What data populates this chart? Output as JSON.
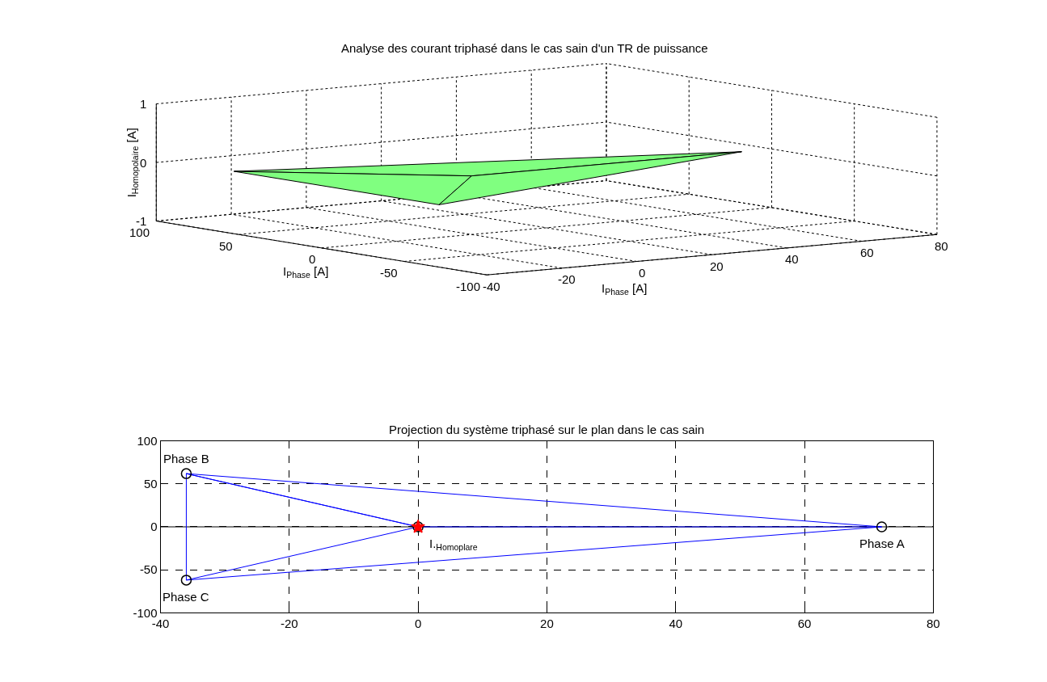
{
  "chart_data": [
    {
      "type": "other",
      "title": "Analyse des courant triphasé dans le cas sain d'un TR de puissance",
      "xlabel": "I$_{Phase}$ [A]",
      "ylabel": "I$_{Phase}$ [A]",
      "y2label": "I$_{Homopolaire}$ [A]",
      "annotations": [
        "-40",
        "-20",
        "0",
        "20",
        "40",
        "60",
        "80",
        "-100",
        "-50",
        "0",
        "50",
        "100",
        "-1",
        "0",
        "1"
      ]
    },
    {
      "type": "line",
      "title": "Projection du système triphasé sur le plan dans le cas sain",
      "xlim": [
        -40,
        80
      ],
      "xticks": [
        -40,
        -20,
        0,
        20,
        40,
        60,
        80
      ],
      "ylim": [
        -100,
        100
      ],
      "yticks": [
        -100,
        -50,
        0,
        50,
        100
      ],
      "grid": true,
      "line_style": "solid",
      "series": [
        {
          "type": "line",
          "color": "#0000ff",
          "marker": "none",
          "x": [
            72,
            -36,
            -36,
            72,
            0,
            -36,
            0,
            -36
          ],
          "values": [
            0,
            62,
            -62,
            0,
            0,
            62,
            0,
            -62
          ]
        },
        {
          "type": "scatter",
          "color": "#000000",
          "marker": "circle",
          "x": [
            72,
            -36,
            -36,
            0
          ],
          "values": [
            0,
            62,
            -62,
            0
          ]
        },
        {
          "type": "scatter",
          "color": "#ff0000",
          "marker": "star",
          "x": [
            0
          ],
          "values": [
            0
          ]
        }
      ],
      "ref_lines": [
        {
          "axis": "y",
          "value": 0,
          "color": "#000000",
          "line_style": "solid"
        }
      ],
      "annotations": [
        {
          "text": "Phase A",
          "x": 72,
          "y": 0
        },
        {
          "text": "Phase B",
          "x": -36,
          "y": 62
        },
        {
          "text": "Phase C",
          "x": -36,
          "y": -62
        },
        {
          "text": "I.$_{Homoplare}$",
          "x": 0,
          "y": 0
        }
      ]
    }
  ]
}
